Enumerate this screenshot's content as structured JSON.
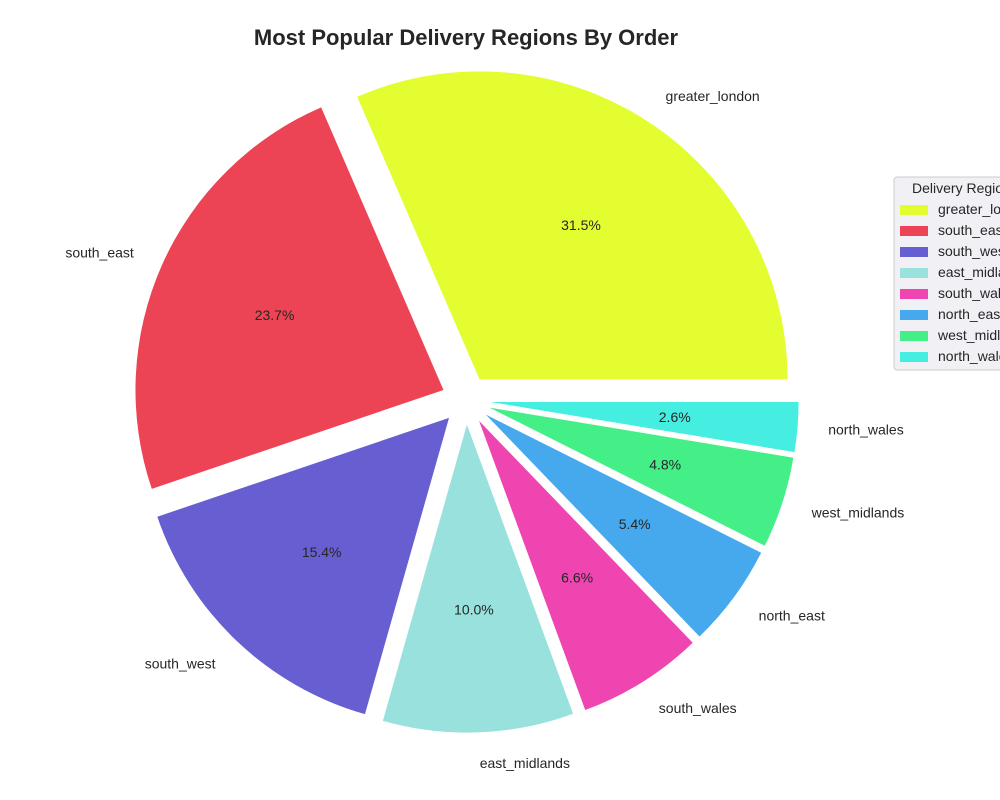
{
  "chart_data": {
    "type": "pie",
    "title": "Most Popular Delivery Regions By Order",
    "categories": [
      "greater_london",
      "south_east",
      "south_west",
      "east_midlands",
      "south_wales",
      "north_east",
      "west_midlands",
      "north_wales"
    ],
    "values": [
      31.5,
      23.7,
      15.4,
      10.0,
      6.6,
      5.4,
      4.8,
      2.6
    ],
    "value_labels": [
      "31.5%",
      "23.7%",
      "15.4%",
      "10.0%",
      "6.6%",
      "5.4%",
      "4.8%",
      "2.6%"
    ],
    "colors": [
      "#e3fd31",
      "#ec4455",
      "#675fd1",
      "#98e1dc",
      "#ee45b0",
      "#46a9ee",
      "#45ef88",
      "#45eee1"
    ],
    "exploded": true,
    "legend": {
      "title": "Delivery Regions",
      "position": "right",
      "entries": [
        "greater_london",
        "south_east",
        "south_west",
        "east_midlands",
        "south_wales",
        "north_east",
        "west_midlands",
        "north_wales"
      ]
    }
  }
}
